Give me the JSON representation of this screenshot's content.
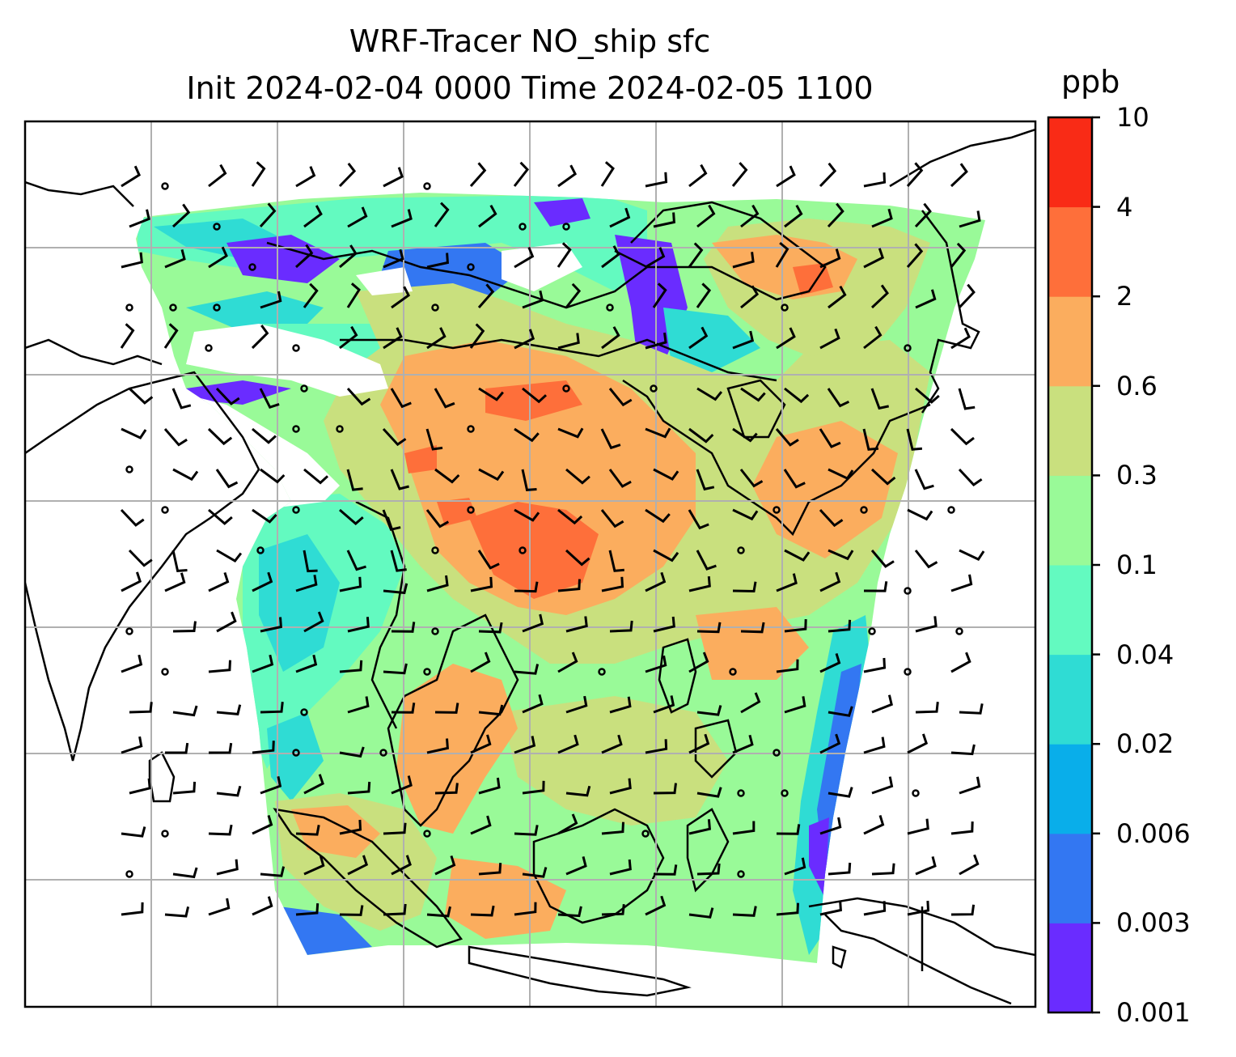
{
  "title_line1": "WRF-Tracer NO_ship sfc",
  "title_line2": "Init 2024-02-04 0000 Time 2024-02-05 1100",
  "colorbar": {
    "unit": "ppb",
    "levels": [
      "0.001",
      "0.003",
      "0.006",
      "0.02",
      "0.04",
      "0.1",
      "0.3",
      "0.6",
      "2",
      "4",
      "10"
    ],
    "colors": [
      "#6a2cff",
      "#3377f2",
      "#09aeea",
      "#2fdcd4",
      "#63fac0",
      "#99fa98",
      "#c9e07e",
      "#fbad5e",
      "#fe6f3a",
      "#f92b16"
    ]
  }
}
